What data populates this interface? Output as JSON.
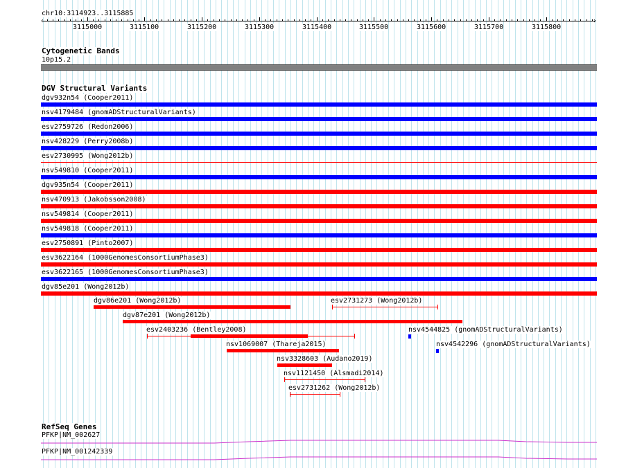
{
  "ruler": {
    "position_label": "chr10:3114923..3115885",
    "start": 3114923,
    "end": 3115885,
    "tick_labels": [
      "3115000",
      "3115100",
      "3115200",
      "3115300",
      "3115400",
      "3115500",
      "3115600",
      "3115700",
      "3115800"
    ]
  },
  "tracks": {
    "cytoband": {
      "title": "Cytogenetic Bands",
      "band_label": "10p15.2",
      "color": "#808080"
    },
    "dgv": {
      "title": "DGV Structural Variants",
      "colors": {
        "gain": "#0000ff",
        "loss": "#ff0000"
      },
      "full_rows": [
        {
          "label": "dgv932n54 (Cooper2011)",
          "color": "#0000ff"
        },
        {
          "label": "nsv4179484 (gnomADStructuralVariants)",
          "color": "#0000ff"
        },
        {
          "label": "esv2759726 (Redon2006)",
          "color": "#0000ff"
        },
        {
          "label": "nsv428229 (Perry2008b)",
          "color": "#0000ff"
        },
        {
          "label": "esv2730995 (Wong2012b)",
          "color": "#ff0000"
        },
        {
          "label": "nsv549810 (Cooper2011)",
          "color": "#0000ff"
        },
        {
          "label": "dgv935n54 (Cooper2011)",
          "color": "#ff0000"
        },
        {
          "label": "nsv470913 (Jakobsson2008)",
          "color": "#ff0000"
        },
        {
          "label": "nsv549814 (Cooper2011)",
          "color": "#ff0000"
        },
        {
          "label": "nsv549818 (Cooper2011)",
          "color": "#0000ff"
        },
        {
          "label": "esv2750891 (Pinto2007)",
          "color": "#ff0000"
        },
        {
          "label": "esv3622164 (1000GenomesConsortiumPhase3)",
          "color": "#ff0000"
        },
        {
          "label": "esv3622165 (1000GenomesConsortiumPhase3)",
          "color": "#0000ff"
        },
        {
          "label": "dgv85e201 (Wong2012b)",
          "color": "#ff0000"
        }
      ],
      "packed": [
        {
          "label": "dgv86e201 (Wong2012b)",
          "color": "#ff0000"
        },
        {
          "label": "esv2731273 (Wong2012b)",
          "color": "#ff0000"
        },
        {
          "label": "dgv87e201 (Wong2012b)",
          "color": "#ff0000"
        },
        {
          "label": "esv2403236 (Bentley2008)",
          "color": "#ff0000"
        },
        {
          "label": "nsv4544825 (gnomADStructuralVariants)",
          "color": "#0000ff"
        },
        {
          "label": "nsv1069007 (Thareja2015)",
          "color": "#ff0000"
        },
        {
          "label": "nsv4542296 (gnomADStructuralVariants)",
          "color": "#0000ff"
        },
        {
          "label": "nsv3328603 (Audano2019)",
          "color": "#ff0000"
        },
        {
          "label": "nsv1121450 (Alsmadi2014)",
          "color": "#ff0000"
        },
        {
          "label": "esv2731262 (Wong2012b)",
          "color": "#ff0000"
        }
      ]
    },
    "refseq": {
      "title": "RefSeq Genes",
      "color": "#cc33cc",
      "transcripts": [
        {
          "label": "PFKP|NM_002627"
        },
        {
          "label": "PFKP|NM_001242339"
        }
      ]
    }
  }
}
